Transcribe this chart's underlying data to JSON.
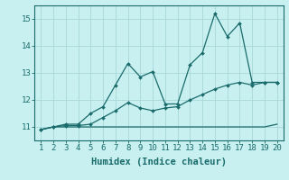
{
  "xlabel": "Humidex (Indice chaleur)",
  "x": [
    1,
    2,
    3,
    4,
    5,
    6,
    7,
    8,
    9,
    10,
    11,
    12,
    13,
    14,
    15,
    16,
    17,
    18,
    19,
    20
  ],
  "line1": [
    10.9,
    11.0,
    11.0,
    11.0,
    11.0,
    11.0,
    11.0,
    11.0,
    11.0,
    11.0,
    11.0,
    11.0,
    11.0,
    11.0,
    11.0,
    11.0,
    11.0,
    11.0,
    11.0,
    11.1
  ],
  "line2": [
    10.9,
    11.0,
    11.05,
    11.05,
    11.1,
    11.35,
    11.6,
    11.9,
    11.7,
    11.6,
    11.7,
    11.75,
    12.0,
    12.2,
    12.4,
    12.55,
    12.65,
    12.55,
    12.65,
    12.65
  ],
  "line3": [
    10.9,
    11.0,
    11.1,
    11.1,
    11.5,
    11.75,
    12.55,
    13.35,
    12.85,
    13.05,
    11.85,
    11.85,
    13.3,
    13.75,
    15.2,
    14.35,
    14.85,
    12.65,
    12.65,
    12.65
  ],
  "line_color": "#1a6b6b",
  "bg_color": "#c8f0f0",
  "grid_color": "#a8d8d8",
  "ylim": [
    10.5,
    15.5
  ],
  "yticks": [
    11,
    12,
    13,
    14,
    15
  ],
  "xticks": [
    1,
    2,
    3,
    4,
    5,
    6,
    7,
    8,
    9,
    10,
    11,
    12,
    13,
    14,
    15,
    16,
    17,
    18,
    19,
    20
  ],
  "tick_fontsize": 6.5,
  "label_fontsize": 7.5
}
